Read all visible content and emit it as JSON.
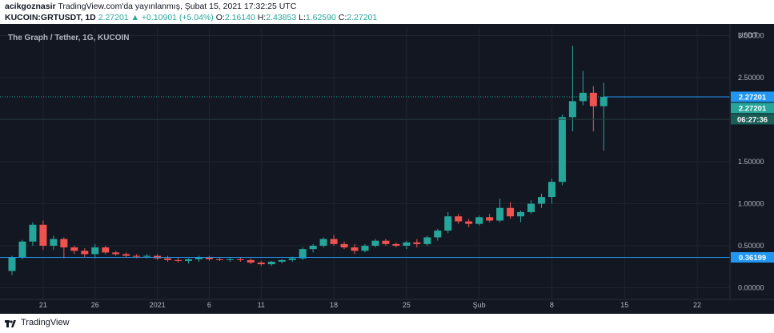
{
  "header": {
    "author": "acikgoznasir",
    "published": "TradingView.com'da yayınlanmış, Şubat 15, 2021 17:32:25 UTC",
    "symbol": "KUCOIN:GRTUSDT, 1D",
    "last": "2.27201",
    "arrow": "▲",
    "change": "+0.10901 (+5.04%)",
    "o_label": "O:",
    "o_val": "2.16140",
    "h_label": "H:",
    "h_val": "2.43853",
    "l_label": "L:",
    "l_val": "1.62590",
    "c_label": "C:",
    "c_val": "2.27201"
  },
  "footer": {
    "brand": "TradingView",
    "logo_icon": "tradingview-logo-icon"
  },
  "colors": {
    "up": "#26a69a",
    "down": "#ef5350",
    "bg": "#131722",
    "grid": "#1f2430",
    "axis_text": "#b2b5be",
    "price_line": "#2196f3"
  },
  "chart_data": {
    "type": "candlestick",
    "title": "The Graph / Tether, 1G, KUCOIN",
    "currency": "USDT",
    "ylim": [
      -0.1,
      3.1
    ],
    "y_ticks": [
      "0.00000",
      "0.50000",
      "1.00000",
      "1.50000",
      "2.00000",
      "2.50000",
      "3.00000"
    ],
    "x_ticks": [
      {
        "label": "21",
        "i": 3
      },
      {
        "label": "26",
        "i": 8
      },
      {
        "label": "2021",
        "i": 14
      },
      {
        "label": "6",
        "i": 19
      },
      {
        "label": "11",
        "i": 24
      },
      {
        "label": "18",
        "i": 31
      },
      {
        "label": "25",
        "i": 38
      },
      {
        "label": "Şub",
        "i": 45
      },
      {
        "label": "8",
        "i": 52
      },
      {
        "label": "15",
        "i": 59
      },
      {
        "label": "22",
        "i": 66
      }
    ],
    "candles": [
      [
        0.2,
        0.38,
        0.15,
        0.36
      ],
      [
        0.36,
        0.57,
        0.34,
        0.55
      ],
      [
        0.55,
        0.78,
        0.5,
        0.75
      ],
      [
        0.75,
        0.8,
        0.45,
        0.5
      ],
      [
        0.5,
        0.62,
        0.45,
        0.58
      ],
      [
        0.58,
        0.6,
        0.35,
        0.48
      ],
      [
        0.48,
        0.5,
        0.4,
        0.44
      ],
      [
        0.44,
        0.47,
        0.36,
        0.4
      ],
      [
        0.4,
        0.52,
        0.35,
        0.48
      ],
      [
        0.48,
        0.5,
        0.4,
        0.42
      ],
      [
        0.42,
        0.44,
        0.38,
        0.4
      ],
      [
        0.4,
        0.42,
        0.36,
        0.38
      ],
      [
        0.38,
        0.4,
        0.35,
        0.37
      ],
      [
        0.37,
        0.4,
        0.35,
        0.38
      ],
      [
        0.38,
        0.4,
        0.33,
        0.35
      ],
      [
        0.35,
        0.38,
        0.31,
        0.33
      ],
      [
        0.33,
        0.36,
        0.3,
        0.32
      ],
      [
        0.32,
        0.35,
        0.29,
        0.34
      ],
      [
        0.34,
        0.38,
        0.31,
        0.36
      ],
      [
        0.36,
        0.38,
        0.32,
        0.34
      ],
      [
        0.34,
        0.36,
        0.32,
        0.33
      ],
      [
        0.33,
        0.36,
        0.31,
        0.34
      ],
      [
        0.34,
        0.36,
        0.31,
        0.33
      ],
      [
        0.33,
        0.35,
        0.28,
        0.3
      ],
      [
        0.3,
        0.32,
        0.26,
        0.28
      ],
      [
        0.28,
        0.32,
        0.26,
        0.31
      ],
      [
        0.31,
        0.34,
        0.29,
        0.33
      ],
      [
        0.33,
        0.37,
        0.31,
        0.35
      ],
      [
        0.35,
        0.48,
        0.33,
        0.46
      ],
      [
        0.46,
        0.52,
        0.42,
        0.5
      ],
      [
        0.5,
        0.6,
        0.48,
        0.58
      ],
      [
        0.58,
        0.63,
        0.5,
        0.52
      ],
      [
        0.52,
        0.55,
        0.46,
        0.48
      ],
      [
        0.48,
        0.52,
        0.4,
        0.44
      ],
      [
        0.44,
        0.52,
        0.42,
        0.5
      ],
      [
        0.5,
        0.58,
        0.48,
        0.56
      ],
      [
        0.56,
        0.58,
        0.5,
        0.52
      ],
      [
        0.52,
        0.54,
        0.48,
        0.5
      ],
      [
        0.5,
        0.56,
        0.46,
        0.54
      ],
      [
        0.54,
        0.58,
        0.48,
        0.52
      ],
      [
        0.52,
        0.62,
        0.5,
        0.6
      ],
      [
        0.6,
        0.7,
        0.56,
        0.68
      ],
      [
        0.68,
        0.9,
        0.65,
        0.85
      ],
      [
        0.85,
        0.88,
        0.76,
        0.79
      ],
      [
        0.79,
        0.82,
        0.72,
        0.76
      ],
      [
        0.76,
        0.86,
        0.74,
        0.84
      ],
      [
        0.84,
        0.88,
        0.78,
        0.8
      ],
      [
        0.8,
        1.06,
        0.78,
        0.95
      ],
      [
        0.95,
        1.02,
        0.82,
        0.85
      ],
      [
        0.85,
        0.92,
        0.78,
        0.9
      ],
      [
        0.9,
        1.04,
        0.88,
        1.0
      ],
      [
        1.0,
        1.12,
        0.95,
        1.08
      ],
      [
        1.08,
        1.3,
        1.0,
        1.26
      ],
      [
        1.26,
        2.06,
        1.22,
        2.03
      ],
      [
        2.03,
        2.88,
        1.86,
        2.22
      ],
      [
        2.22,
        2.58,
        2.17,
        2.32
      ],
      [
        2.32,
        2.4,
        1.86,
        2.16
      ],
      [
        2.16,
        2.44,
        1.63,
        2.27
      ]
    ],
    "last_price": "2.27201",
    "countdown": "06:27:36",
    "ref_level": "0.36199"
  }
}
